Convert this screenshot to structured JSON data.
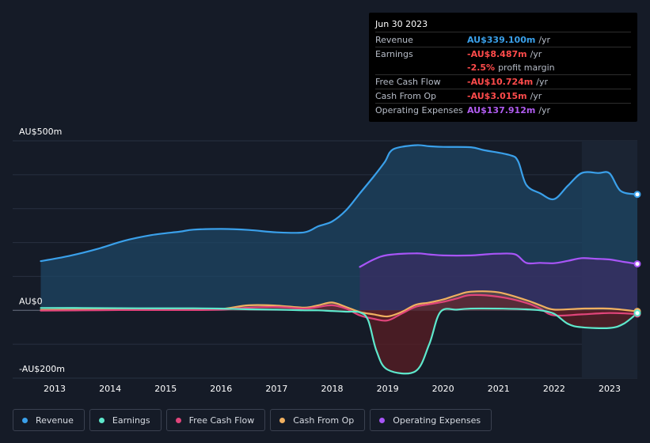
{
  "tooltip": {
    "date": "Jun 30 2023",
    "rows": [
      {
        "label": "Revenue",
        "value": "AU$339.100m",
        "unit": "/yr",
        "color": "#3aa0ea"
      },
      {
        "label": "Earnings",
        "value": "-AU$8.487m",
        "unit": "/yr",
        "color": "#ff4b4b"
      },
      {
        "label": "",
        "value": "-2.5%",
        "unit": "profit margin",
        "color": "#ff4b4b"
      },
      {
        "label": "Free Cash Flow",
        "value": "-AU$10.724m",
        "unit": "/yr",
        "color": "#ff4b4b"
      },
      {
        "label": "Cash From Op",
        "value": "-AU$3.015m",
        "unit": "/yr",
        "color": "#ff4b4b"
      },
      {
        "label": "Operating Expenses",
        "value": "AU$137.912m",
        "unit": "/yr",
        "color": "#b05cf0"
      }
    ]
  },
  "legend": [
    {
      "label": "Revenue",
      "color": "#3aa0ea"
    },
    {
      "label": "Earnings",
      "color": "#5ee8cc"
    },
    {
      "label": "Free Cash Flow",
      "color": "#e0457b"
    },
    {
      "label": "Cash From Op",
      "color": "#f0b060"
    },
    {
      "label": "Operating Expenses",
      "color": "#a855f7"
    }
  ],
  "chart_data": {
    "type": "area",
    "title": "",
    "ylim": [
      -200,
      500
    ],
    "xlim": [
      2012.7,
      2023.5
    ],
    "y_tick_labels": [
      {
        "value": 500,
        "label": "AU$500m"
      },
      {
        "value": 0,
        "label": "AU$0"
      },
      {
        "value": -200,
        "label": "-AU$200m"
      }
    ],
    "x_ticks": [
      {
        "value": 2013,
        "label": "2013"
      },
      {
        "value": 2014,
        "label": "2014"
      },
      {
        "value": 2015,
        "label": "2015"
      },
      {
        "value": 2016,
        "label": "2016"
      },
      {
        "value": 2017,
        "label": "2017"
      },
      {
        "value": 2018,
        "label": "2018"
      },
      {
        "value": 2019,
        "label": "2019"
      },
      {
        "value": 2020,
        "label": "2020"
      },
      {
        "value": 2021,
        "label": "2021"
      },
      {
        "value": 2022,
        "label": "2022"
      },
      {
        "value": 2023,
        "label": "2023"
      }
    ],
    "highlight_from": 2022.5,
    "series": [
      {
        "name": "Revenue",
        "color": "#3aa0ea",
        "fill": "#1e4564",
        "points": [
          [
            2012.75,
            145
          ],
          [
            2013.25,
            160
          ],
          [
            2013.75,
            180
          ],
          [
            2014.25,
            205
          ],
          [
            2014.75,
            222
          ],
          [
            2015.25,
            232
          ],
          [
            2015.5,
            238
          ],
          [
            2016,
            240
          ],
          [
            2016.5,
            237
          ],
          [
            2017,
            230
          ],
          [
            2017.5,
            230
          ],
          [
            2017.75,
            248
          ],
          [
            2018,
            262
          ],
          [
            2018.25,
            295
          ],
          [
            2018.5,
            345
          ],
          [
            2018.75,
            395
          ],
          [
            2018.95,
            438
          ],
          [
            2019.1,
            475
          ],
          [
            2019.5,
            487
          ],
          [
            2019.75,
            484
          ],
          [
            2020,
            482
          ],
          [
            2020.5,
            481
          ],
          [
            2020.75,
            472
          ],
          [
            2021.2,
            458
          ],
          [
            2021.35,
            440
          ],
          [
            2021.5,
            370
          ],
          [
            2021.75,
            345
          ],
          [
            2022,
            328
          ],
          [
            2022.25,
            368
          ],
          [
            2022.5,
            405
          ],
          [
            2022.8,
            405
          ],
          [
            2023,
            404
          ],
          [
            2023.2,
            352
          ],
          [
            2023.5,
            342
          ]
        ]
      },
      {
        "name": "Operating Expenses",
        "color": "#a855f7",
        "fill": "#3a2e63",
        "points": [
          [
            2018.5,
            128
          ],
          [
            2018.75,
            150
          ],
          [
            2019,
            163
          ],
          [
            2019.5,
            168
          ],
          [
            2019.75,
            165
          ],
          [
            2020,
            162
          ],
          [
            2020.5,
            162
          ],
          [
            2020.75,
            165
          ],
          [
            2021,
            167
          ],
          [
            2021.3,
            165
          ],
          [
            2021.5,
            140
          ],
          [
            2021.75,
            140
          ],
          [
            2022,
            139
          ],
          [
            2022.25,
            146
          ],
          [
            2022.5,
            154
          ],
          [
            2022.75,
            152
          ],
          [
            2023,
            150
          ],
          [
            2023.25,
            143
          ],
          [
            2023.5,
            137
          ]
        ]
      },
      {
        "name": "Cash From Op",
        "color": "#f0b060",
        "fill": "#5c4a44",
        "points": [
          [
            2012.75,
            1
          ],
          [
            2013.5,
            2
          ],
          [
            2014.5,
            3
          ],
          [
            2015.5,
            3
          ],
          [
            2016,
            4
          ],
          [
            2016.5,
            15
          ],
          [
            2017,
            14
          ],
          [
            2017.5,
            8
          ],
          [
            2017.75,
            15
          ],
          [
            2018,
            23
          ],
          [
            2018.25,
            10
          ],
          [
            2018.5,
            -5
          ],
          [
            2018.75,
            -12
          ],
          [
            2019,
            -18
          ],
          [
            2019.25,
            -5
          ],
          [
            2019.5,
            16
          ],
          [
            2019.75,
            23
          ],
          [
            2020,
            32
          ],
          [
            2020.25,
            45
          ],
          [
            2020.5,
            55
          ],
          [
            2021,
            53
          ],
          [
            2021.5,
            30
          ],
          [
            2021.75,
            15
          ],
          [
            2022,
            2
          ],
          [
            2022.5,
            5
          ],
          [
            2023,
            5
          ],
          [
            2023.5,
            -3
          ]
        ]
      },
      {
        "name": "Free Cash Flow",
        "color": "#e0457b",
        "fill": "#5a2432",
        "points": [
          [
            2012.75,
            -1
          ],
          [
            2013.5,
            0
          ],
          [
            2014.5,
            1
          ],
          [
            2015.5,
            1
          ],
          [
            2016,
            2
          ],
          [
            2016.5,
            8
          ],
          [
            2017,
            10
          ],
          [
            2017.5,
            5
          ],
          [
            2017.75,
            10
          ],
          [
            2018,
            15
          ],
          [
            2018.25,
            5
          ],
          [
            2018.5,
            -15
          ],
          [
            2018.75,
            -25
          ],
          [
            2019,
            -30
          ],
          [
            2019.25,
            -10
          ],
          [
            2019.5,
            10
          ],
          [
            2019.75,
            18
          ],
          [
            2020,
            25
          ],
          [
            2020.25,
            35
          ],
          [
            2020.5,
            45
          ],
          [
            2021,
            40
          ],
          [
            2021.5,
            22
          ],
          [
            2021.75,
            5
          ],
          [
            2022,
            -15
          ],
          [
            2022.5,
            -12
          ],
          [
            2023,
            -8
          ],
          [
            2023.5,
            -11
          ]
        ]
      },
      {
        "name": "Earnings",
        "color": "#5ee8cc",
        "fill": "#5a1d24",
        "points": [
          [
            2012.75,
            7
          ],
          [
            2013.5,
            7
          ],
          [
            2014.5,
            6
          ],
          [
            2015.5,
            6
          ],
          [
            2016,
            5
          ],
          [
            2016.5,
            3
          ],
          [
            2017,
            2
          ],
          [
            2017.5,
            0
          ],
          [
            2017.75,
            0
          ],
          [
            2018,
            -2
          ],
          [
            2018.25,
            -4
          ],
          [
            2018.5,
            -6
          ],
          [
            2018.65,
            -30
          ],
          [
            2018.8,
            -120
          ],
          [
            2019,
            -175
          ],
          [
            2019.5,
            -180
          ],
          [
            2019.75,
            -100
          ],
          [
            2019.95,
            -5
          ],
          [
            2020.25,
            2
          ],
          [
            2020.5,
            5
          ],
          [
            2021,
            5
          ],
          [
            2021.5,
            3
          ],
          [
            2021.75,
            0
          ],
          [
            2022,
            -10
          ],
          [
            2022.25,
            -40
          ],
          [
            2022.5,
            -50
          ],
          [
            2023,
            -52
          ],
          [
            2023.25,
            -40
          ],
          [
            2023.5,
            -8
          ]
        ]
      }
    ]
  }
}
